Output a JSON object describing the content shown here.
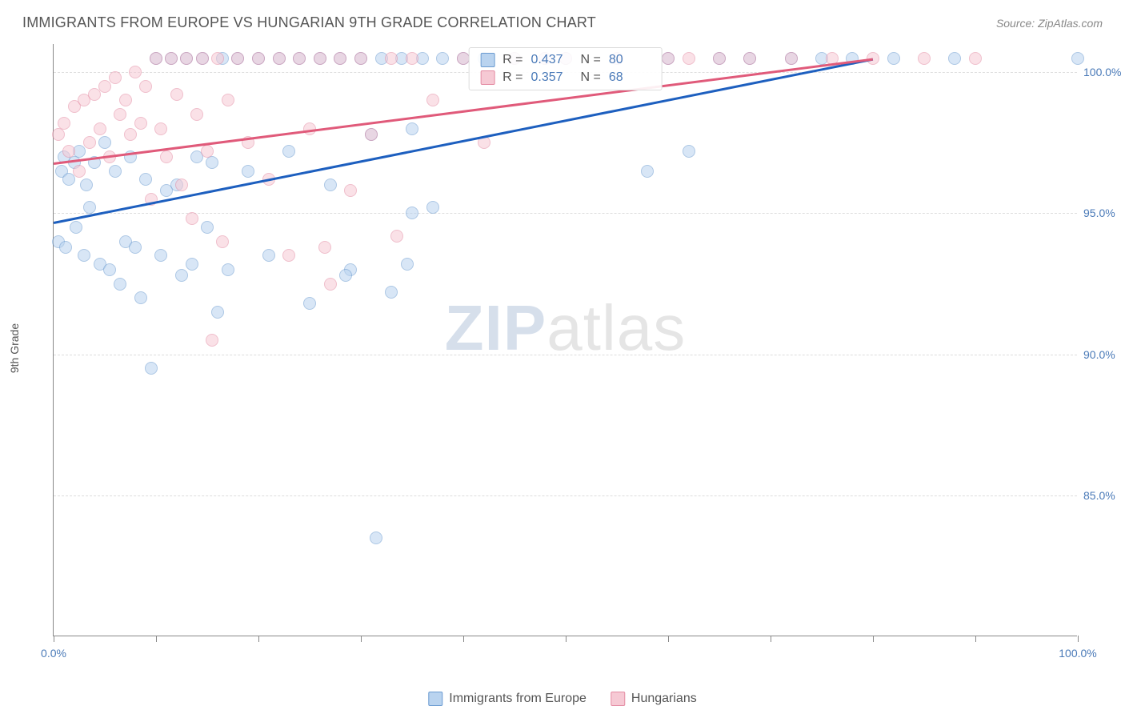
{
  "header": {
    "title": "IMMIGRANTS FROM EUROPE VS HUNGARIAN 9TH GRADE CORRELATION CHART",
    "source_prefix": "Source: ",
    "source_name": "ZipAtlas.com"
  },
  "chart": {
    "type": "scatter",
    "ylabel": "9th Grade",
    "background_color": "#ffffff",
    "grid_color": "#dddddd",
    "axis_color": "#888888",
    "tick_label_color": "#4a7ab8",
    "xlim": [
      0,
      100
    ],
    "ylim": [
      80,
      101
    ],
    "yticks": [
      {
        "v": 100,
        "label": "100.0%"
      },
      {
        "v": 95,
        "label": "95.0%"
      },
      {
        "v": 90,
        "label": "90.0%"
      },
      {
        "v": 85,
        "label": "85.0%"
      }
    ],
    "xtick_positions": [
      0,
      10,
      20,
      30,
      40,
      50,
      60,
      70,
      80,
      90,
      100
    ],
    "xtick_labels": {
      "0": "0.0%",
      "100": "100.0%"
    },
    "marker_radius": 8,
    "marker_opacity": 0.55,
    "legend_top": [
      {
        "color_fill": "#b9d3ef",
        "color_stroke": "#6b9bd1",
        "r_label": "R =",
        "r_val": "0.437",
        "n_label": "N =",
        "n_val": "80"
      },
      {
        "color_fill": "#f6c9d4",
        "color_stroke": "#e48ba3",
        "r_label": "R =",
        "r_val": "0.357",
        "n_label": "N =",
        "n_val": "68"
      }
    ],
    "legend_bottom": [
      {
        "color_fill": "#b9d3ef",
        "color_stroke": "#6b9bd1",
        "label": "Immigrants from Europe"
      },
      {
        "color_fill": "#f6c9d4",
        "color_stroke": "#e48ba3",
        "label": "Hungarians"
      }
    ],
    "series": [
      {
        "name": "Immigrants from Europe",
        "color_fill": "#b9d3ef",
        "color_stroke": "#6b9bd1",
        "trend_color": "#1d5fbf",
        "trend": {
          "x1": 0,
          "y1": 94.7,
          "x2": 80,
          "y2": 100.5
        },
        "points": [
          [
            0.5,
            94.0
          ],
          [
            0.8,
            96.5
          ],
          [
            1.0,
            97.0
          ],
          [
            1.2,
            93.8
          ],
          [
            1.5,
            96.2
          ],
          [
            2.0,
            96.8
          ],
          [
            2.2,
            94.5
          ],
          [
            2.5,
            97.2
          ],
          [
            3.0,
            93.5
          ],
          [
            3.2,
            96.0
          ],
          [
            3.5,
            95.2
          ],
          [
            4.0,
            96.8
          ],
          [
            4.5,
            93.2
          ],
          [
            5.0,
            97.5
          ],
          [
            5.5,
            93.0
          ],
          [
            6.0,
            96.5
          ],
          [
            6.5,
            92.5
          ],
          [
            7.0,
            94.0
          ],
          [
            7.5,
            97.0
          ],
          [
            8.0,
            93.8
          ],
          [
            8.5,
            92.0
          ],
          [
            9.0,
            96.2
          ],
          [
            9.5,
            89.5
          ],
          [
            10.0,
            100.5
          ],
          [
            10.5,
            93.5
          ],
          [
            11.0,
            95.8
          ],
          [
            11.5,
            100.5
          ],
          [
            12.0,
            96.0
          ],
          [
            12.5,
            92.8
          ],
          [
            13.0,
            100.5
          ],
          [
            13.5,
            93.2
          ],
          [
            14.0,
            97.0
          ],
          [
            14.5,
            100.5
          ],
          [
            15.0,
            94.5
          ],
          [
            15.5,
            96.8
          ],
          [
            16.0,
            91.5
          ],
          [
            16.5,
            100.5
          ],
          [
            17.0,
            93.0
          ],
          [
            18.0,
            100.5
          ],
          [
            19.0,
            96.5
          ],
          [
            20.0,
            100.5
          ],
          [
            21.0,
            93.5
          ],
          [
            22.0,
            100.5
          ],
          [
            23.0,
            97.2
          ],
          [
            24.0,
            100.5
          ],
          [
            25.0,
            91.8
          ],
          [
            26.0,
            100.5
          ],
          [
            27.0,
            96.0
          ],
          [
            28.0,
            100.5
          ],
          [
            29.0,
            93.0
          ],
          [
            30.0,
            100.5
          ],
          [
            31.0,
            97.8
          ],
          [
            32.0,
            100.5
          ],
          [
            33.0,
            92.2
          ],
          [
            34.0,
            100.5
          ],
          [
            35.0,
            98.0
          ],
          [
            36.0,
            100.5
          ],
          [
            37.0,
            95.2
          ],
          [
            38.0,
            100.5
          ],
          [
            40.0,
            100.5
          ],
          [
            42.0,
            100.5
          ],
          [
            45.0,
            100.5
          ],
          [
            48.0,
            100.5
          ],
          [
            50.0,
            100.5
          ],
          [
            55.0,
            100.5
          ],
          [
            58.0,
            96.5
          ],
          [
            60.0,
            100.5
          ],
          [
            62.0,
            97.2
          ],
          [
            65.0,
            100.5
          ],
          [
            68.0,
            100.5
          ],
          [
            72.0,
            100.5
          ],
          [
            75.0,
            100.5
          ],
          [
            78.0,
            100.5
          ],
          [
            82.0,
            100.5
          ],
          [
            88.0,
            100.5
          ],
          [
            100.0,
            100.5
          ],
          [
            31.5,
            83.5
          ],
          [
            35.0,
            95.0
          ],
          [
            34.5,
            93.2
          ],
          [
            28.5,
            92.8
          ]
        ]
      },
      {
        "name": "Hungarians",
        "color_fill": "#f6c9d4",
        "color_stroke": "#e48ba3",
        "trend_color": "#e05a7a",
        "trend": {
          "x1": 0,
          "y1": 96.8,
          "x2": 80,
          "y2": 100.5
        },
        "points": [
          [
            0.5,
            97.8
          ],
          [
            1.0,
            98.2
          ],
          [
            1.5,
            97.2
          ],
          [
            2.0,
            98.8
          ],
          [
            2.5,
            96.5
          ],
          [
            3.0,
            99.0
          ],
          [
            3.5,
            97.5
          ],
          [
            4.0,
            99.2
          ],
          [
            4.5,
            98.0
          ],
          [
            5.0,
            99.5
          ],
          [
            5.5,
            97.0
          ],
          [
            6.0,
            99.8
          ],
          [
            6.5,
            98.5
          ],
          [
            7.0,
            99.0
          ],
          [
            7.5,
            97.8
          ],
          [
            8.0,
            100.0
          ],
          [
            8.5,
            98.2
          ],
          [
            9.0,
            99.5
          ],
          [
            9.5,
            95.5
          ],
          [
            10.0,
            100.5
          ],
          [
            10.5,
            98.0
          ],
          [
            11.0,
            97.0
          ],
          [
            11.5,
            100.5
          ],
          [
            12.0,
            99.2
          ],
          [
            12.5,
            96.0
          ],
          [
            13.0,
            100.5
          ],
          [
            13.5,
            94.8
          ],
          [
            14.0,
            98.5
          ],
          [
            14.5,
            100.5
          ],
          [
            15.0,
            97.2
          ],
          [
            15.5,
            90.5
          ],
          [
            16.0,
            100.5
          ],
          [
            16.5,
            94.0
          ],
          [
            17.0,
            99.0
          ],
          [
            18.0,
            100.5
          ],
          [
            19.0,
            97.5
          ],
          [
            20.0,
            100.5
          ],
          [
            21.0,
            96.2
          ],
          [
            22.0,
            100.5
          ],
          [
            23.0,
            93.5
          ],
          [
            24.0,
            100.5
          ],
          [
            25.0,
            98.0
          ],
          [
            26.0,
            100.5
          ],
          [
            27.0,
            92.5
          ],
          [
            28.0,
            100.5
          ],
          [
            29.0,
            95.8
          ],
          [
            30.0,
            100.5
          ],
          [
            31.0,
            97.8
          ],
          [
            33.0,
            100.5
          ],
          [
            35.0,
            100.5
          ],
          [
            37.0,
            99.0
          ],
          [
            40.0,
            100.5
          ],
          [
            42.0,
            97.5
          ],
          [
            45.0,
            100.5
          ],
          [
            48.0,
            100.5
          ],
          [
            50.0,
            100.5
          ],
          [
            55.0,
            100.5
          ],
          [
            60.0,
            100.5
          ],
          [
            62.0,
            100.5
          ],
          [
            65.0,
            100.5
          ],
          [
            68.0,
            100.5
          ],
          [
            72.0,
            100.5
          ],
          [
            76.0,
            100.5
          ],
          [
            80.0,
            100.5
          ],
          [
            85.0,
            100.5
          ],
          [
            90.0,
            100.5
          ],
          [
            26.5,
            93.8
          ],
          [
            33.5,
            94.2
          ]
        ]
      }
    ],
    "watermark": {
      "bold": "ZIP",
      "light": "atlas"
    }
  }
}
